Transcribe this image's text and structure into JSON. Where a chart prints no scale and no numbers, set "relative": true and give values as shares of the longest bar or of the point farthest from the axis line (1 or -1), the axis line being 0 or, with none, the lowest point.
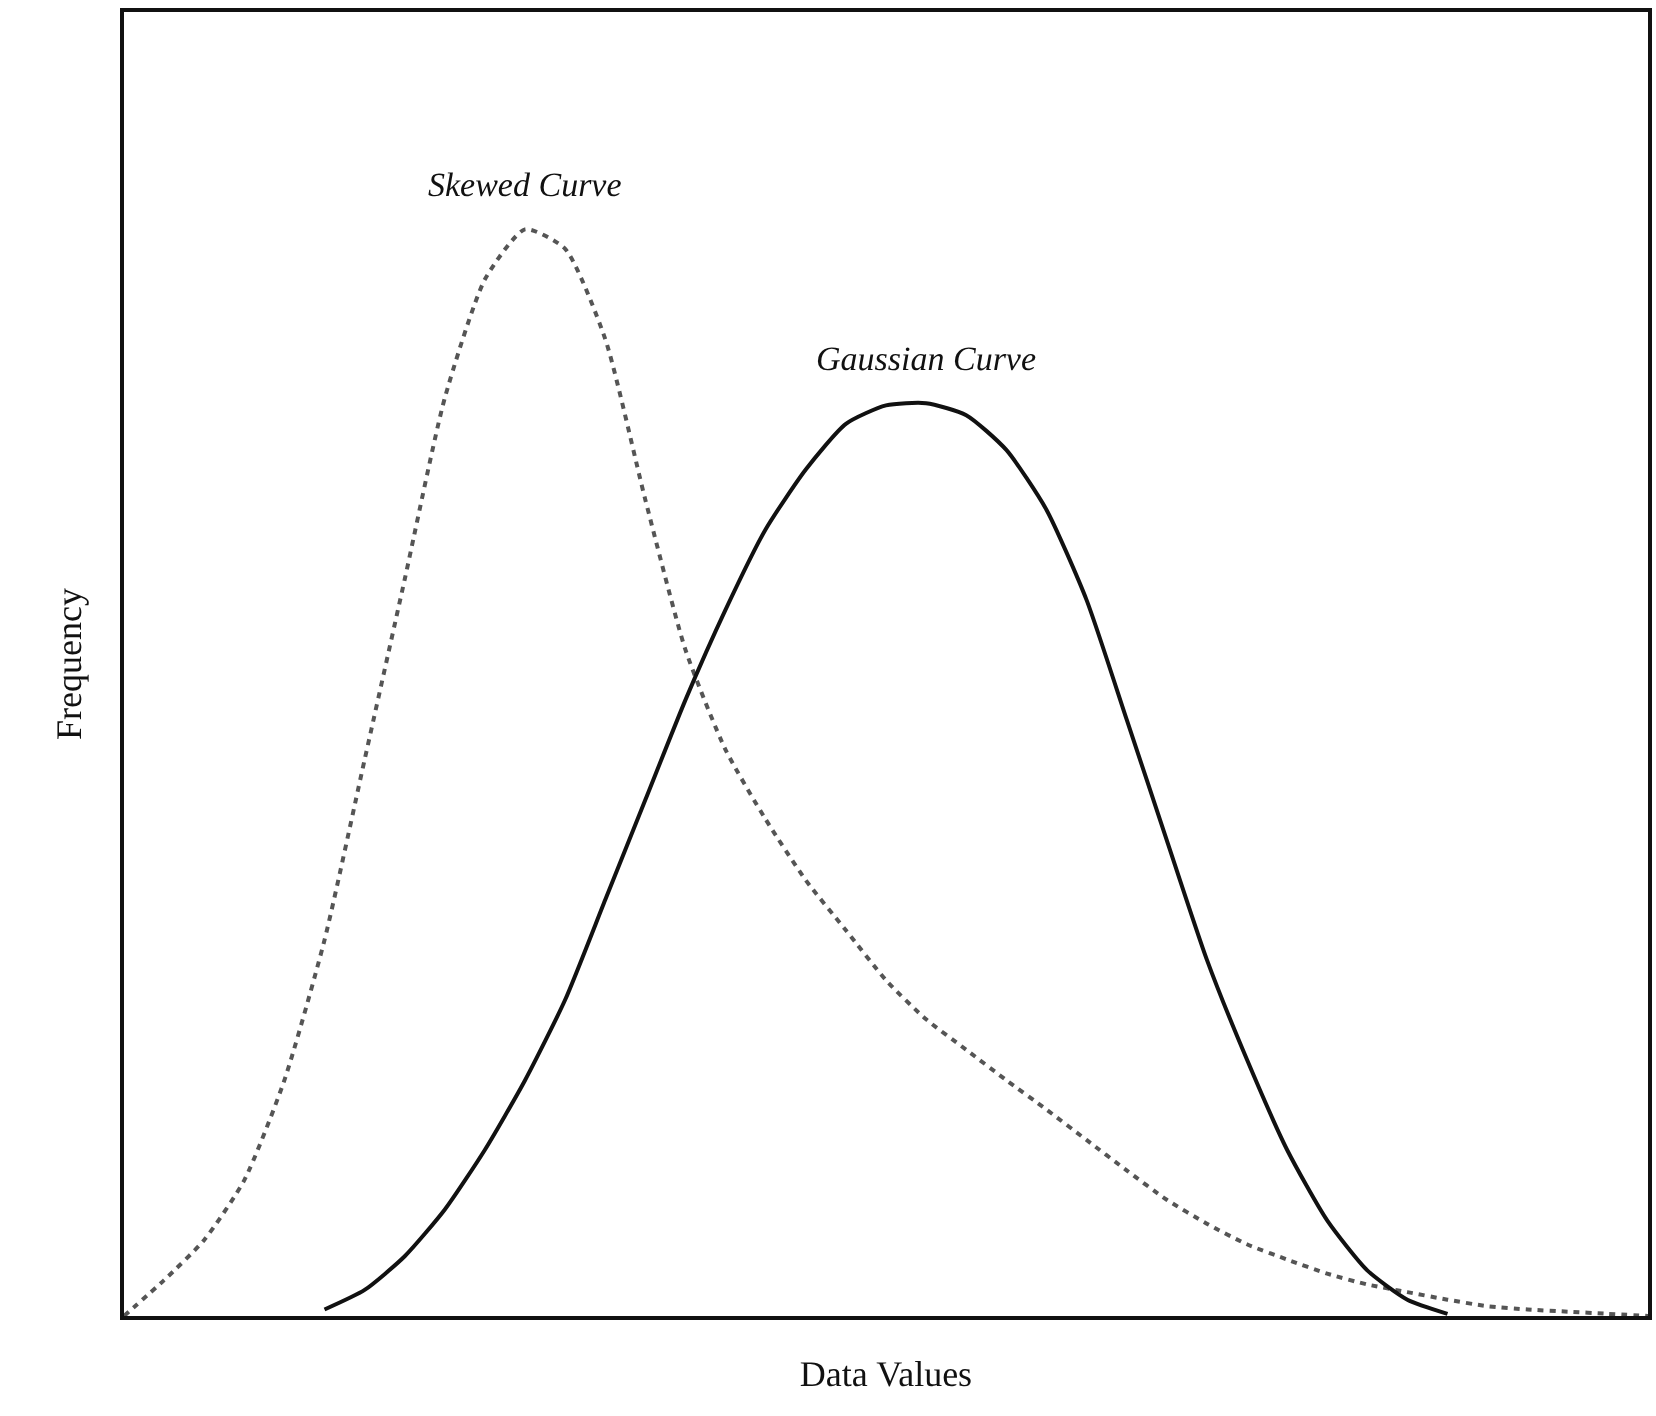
{
  "chart_data": {
    "type": "line",
    "relative": true,
    "xlabel": "Data Values",
    "ylabel": "Frequency",
    "legend": false,
    "marker": "none",
    "categories": [
      null,
      null,
      null,
      null,
      null,
      null,
      null,
      null,
      null,
      null,
      null,
      null,
      null,
      null,
      null,
      null,
      null,
      null,
      null,
      null,
      null,
      null,
      null,
      null,
      null,
      null,
      null,
      null,
      null,
      null,
      null,
      null,
      null,
      null,
      null,
      null,
      null,
      null,
      null
    ],
    "series": [
      {
        "name": "Skewed Curve",
        "color": "#555555",
        "line_style": "dotted",
        "values": [
          0,
          0.033,
          0.07,
          0.125,
          0.217,
          0.346,
          0.512,
          0.678,
          0.845,
          0.954,
          1.0,
          0.982,
          0.899,
          0.751,
          0.613,
          0.521,
          0.457,
          0.401,
          0.355,
          0.309,
          0.273,
          0.245,
          0.217,
          0.19,
          0.162,
          0.134,
          0.107,
          0.085,
          0.066,
          0.052,
          0.039,
          0.029,
          0.022,
          0.015,
          0.009,
          0.006,
          0.004,
          0.002,
          0
        ]
      },
      {
        "name": "Gaussian Curve",
        "color": "#111111",
        "line_style": "solid",
        "values": [
          null,
          null,
          null,
          null,
          null,
          0.006,
          0.024,
          0.055,
          0.098,
          0.153,
          0.217,
          0.291,
          0.383,
          0.475,
          0.567,
          0.65,
          0.724,
          0.779,
          0.821,
          0.838,
          0.84,
          0.829,
          0.797,
          0.742,
          0.659,
          0.549,
          0.438,
          0.328,
          0.236,
          0.153,
          0.088,
          0.042,
          0.015,
          0.002,
          null,
          null,
          null,
          null,
          null
        ]
      }
    ]
  }
}
